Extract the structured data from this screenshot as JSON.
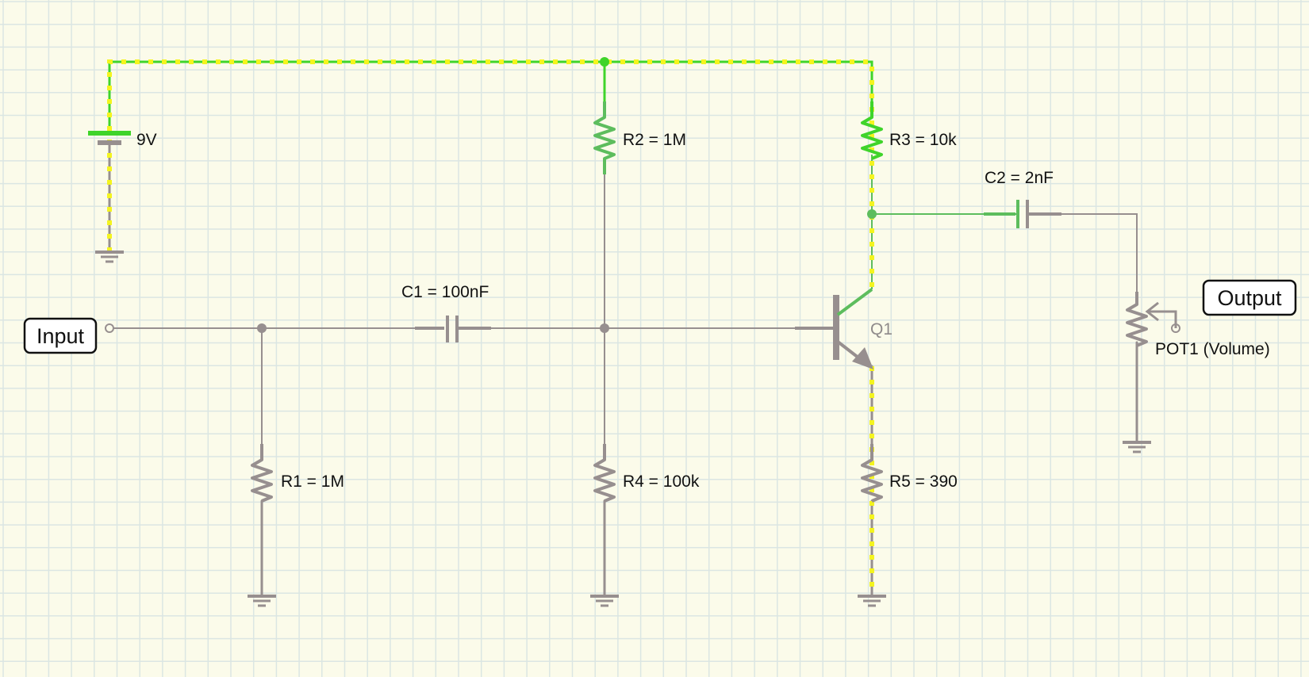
{
  "colors": {
    "background": "#fbfbea",
    "grid": "#dbe6e3",
    "wire_inactive": "#978f8f",
    "wire_active": "#3fd42a",
    "wire_active_dim": "#5dbd5d",
    "current_dots": "#f4f41f"
  },
  "terminals": {
    "input": "Input",
    "output": "Output"
  },
  "components": {
    "battery": "9V",
    "r1": "R1 = 1M",
    "r2": "R2 = 1M",
    "r3": "R3 = 10k",
    "r4": "R4 = 100k",
    "r5": "R5 = 390",
    "c1": "C1 = 100nF",
    "c2": "C2 = 2nF",
    "q1": "Q1",
    "pot1": "POT1 (Volume)"
  }
}
